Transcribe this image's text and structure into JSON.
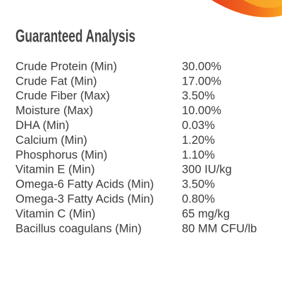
{
  "header": {
    "title": "Guaranteed Analysis"
  },
  "table": {
    "rows": [
      [
        "Crude Protein (Min)",
        "30.00%"
      ],
      [
        "Crude Fat (Min)",
        "17.00%"
      ],
      [
        "Crude Fiber (Max)",
        "3.50%"
      ],
      [
        "Moisture (Max)",
        "10.00%"
      ],
      [
        "DHA (Min)",
        "0.03%"
      ],
      [
        "Calcium (Min)",
        "1.20%"
      ],
      [
        "Phosphorus (Min)",
        "1.10%"
      ],
      [
        "Vitamin E (Min)",
        "300 IU/kg"
      ],
      [
        "Omega-6 Fatty Acids (Min)",
        "3.50%"
      ],
      [
        "Omega-3 Fatty Acids (Min)",
        "0.80%"
      ],
      [
        "Vitamin C (Min)",
        "65 mg/kg"
      ],
      [
        "Bacillus coagulans (Min)",
        "80 MM CFU/lb"
      ]
    ]
  }
}
